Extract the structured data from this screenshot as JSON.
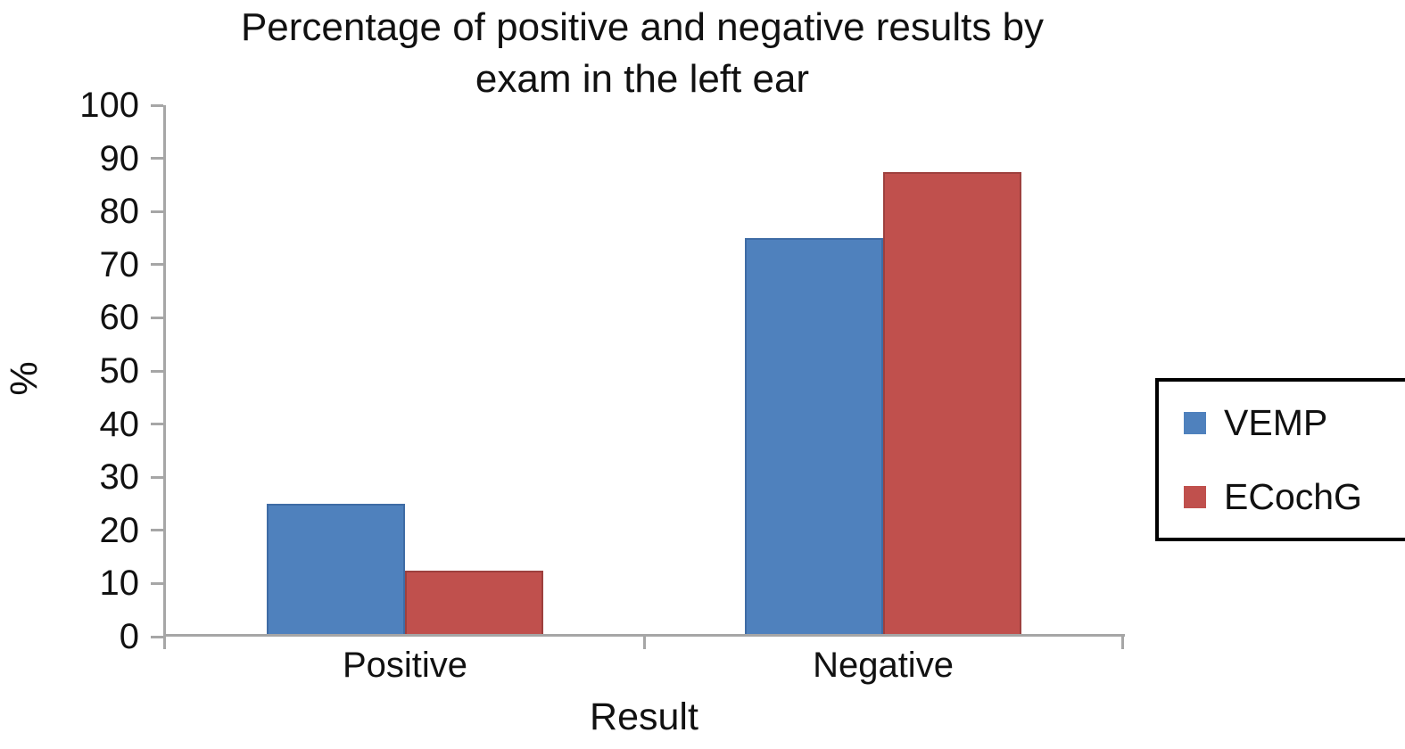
{
  "chart_data": {
    "type": "bar",
    "title": "Percentage of positive and negative results by exam in the left ear",
    "title_lines": [
      "Percentage of positive and negative results by",
      "exam in the left ear"
    ],
    "xlabel": "Result",
    "ylabel": "%",
    "categories": [
      "Positive",
      "Negative"
    ],
    "series": [
      {
        "name": "VEMP",
        "color": "#4f81bd",
        "edge_color": "#3f6ca5",
        "values": [
          25,
          75
        ]
      },
      {
        "name": "ECochG",
        "color": "#c0504d",
        "edge_color": "#9e403e",
        "values": [
          12.5,
          87.5
        ]
      }
    ],
    "ylim": [
      0,
      100
    ],
    "ytick_step": 10,
    "yticks": [
      0,
      10,
      20,
      30,
      40,
      50,
      60,
      70,
      80,
      90,
      100
    ],
    "grid": false,
    "legend_position": "right",
    "axis_color": "#a6a6a6"
  }
}
